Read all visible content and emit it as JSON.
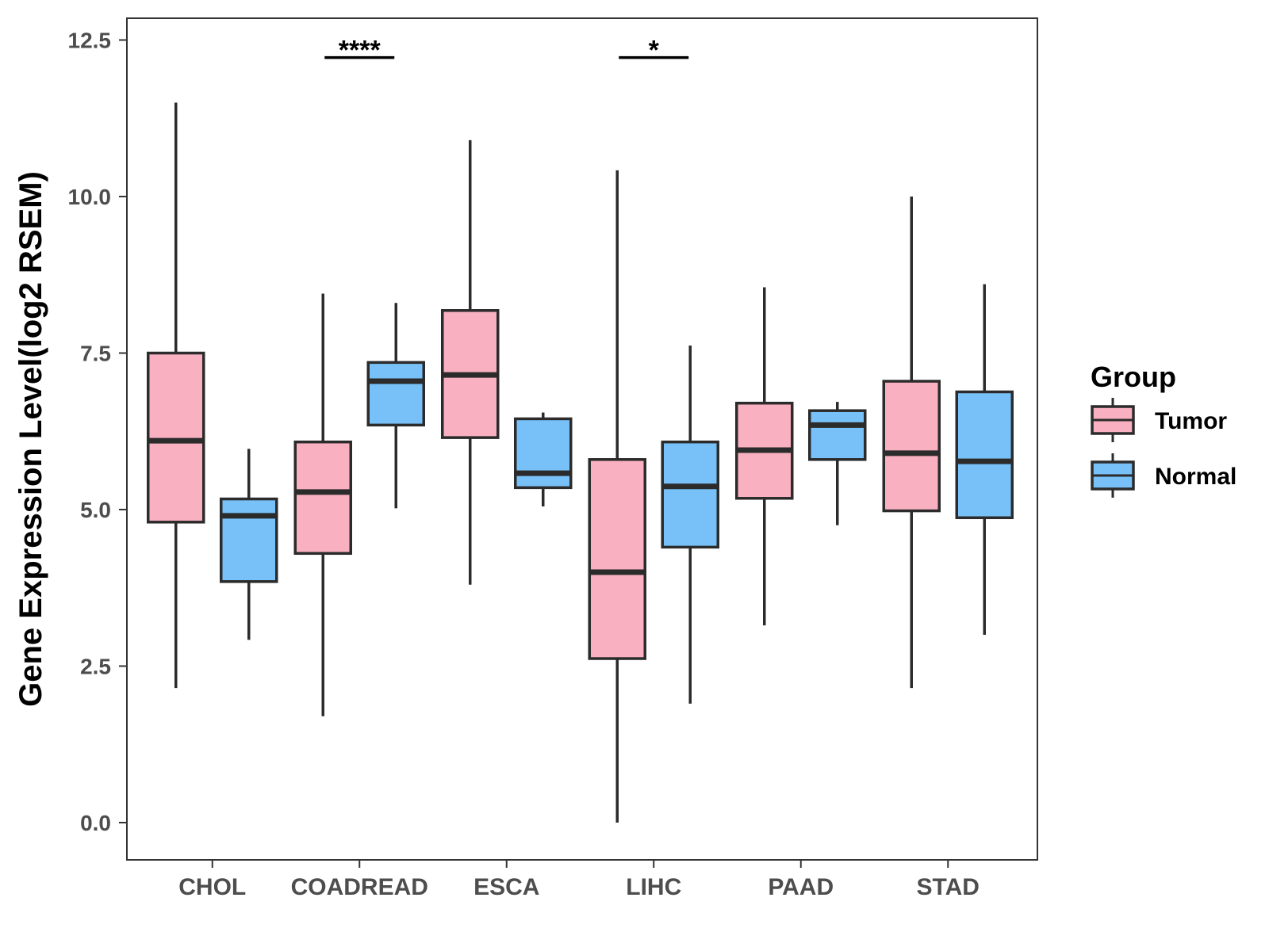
{
  "chart_data": {
    "type": "boxplot",
    "ylabel": "Gene Expression Level(log2 RSEM)",
    "xlabel": "",
    "ylim": [
      -0.6,
      12.85
    ],
    "yticks": [
      0.0,
      2.5,
      5.0,
      7.5,
      10.0,
      12.5
    ],
    "ytick_labels": [
      "0.0",
      "2.5",
      "5.0",
      "7.5",
      "10.0",
      "12.5"
    ],
    "categories": [
      "CHOL",
      "COADREAD",
      "ESCA",
      "LIHC",
      "PAAD",
      "STAD"
    ],
    "legend": {
      "title": "Group",
      "position": "right",
      "entries": [
        {
          "name": "Tumor",
          "color": "#F9B0C1"
        },
        {
          "name": "Normal",
          "color": "#78C1F8"
        }
      ]
    },
    "series": [
      {
        "name": "Tumor",
        "color": "#F9B0C1",
        "boxes": [
          {
            "category": "CHOL",
            "min": 2.15,
            "q1": 4.8,
            "median": 6.1,
            "q3": 7.5,
            "max": 11.5
          },
          {
            "category": "COADREAD",
            "min": 1.7,
            "q1": 4.3,
            "median": 5.28,
            "q3": 6.08,
            "max": 8.45
          },
          {
            "category": "ESCA",
            "min": 3.8,
            "q1": 6.15,
            "median": 7.15,
            "q3": 8.18,
            "max": 10.9
          },
          {
            "category": "LIHC",
            "min": 0.0,
            "q1": 2.62,
            "median": 4.0,
            "q3": 5.8,
            "max": 10.42
          },
          {
            "category": "PAAD",
            "min": 3.15,
            "q1": 5.18,
            "median": 5.95,
            "q3": 6.7,
            "max": 8.55
          },
          {
            "category": "STAD",
            "min": 2.15,
            "q1": 4.98,
            "median": 5.9,
            "q3": 7.05,
            "max": 10.0
          }
        ]
      },
      {
        "name": "Normal",
        "color": "#78C1F8",
        "boxes": [
          {
            "category": "CHOL",
            "min": 2.92,
            "q1": 3.85,
            "median": 4.9,
            "q3": 5.17,
            "max": 5.97
          },
          {
            "category": "COADREAD",
            "min": 5.02,
            "q1": 6.35,
            "median": 7.05,
            "q3": 7.35,
            "max": 8.3
          },
          {
            "category": "ESCA",
            "min": 5.05,
            "q1": 5.35,
            "median": 5.58,
            "q3": 6.45,
            "max": 6.55
          },
          {
            "category": "LIHC",
            "min": 1.9,
            "q1": 4.4,
            "median": 5.37,
            "q3": 6.08,
            "max": 7.62
          },
          {
            "category": "PAAD",
            "min": 4.75,
            "q1": 5.8,
            "median": 6.35,
            "q3": 6.58,
            "max": 6.72
          },
          {
            "category": "STAD",
            "min": 3.0,
            "q1": 4.87,
            "median": 5.77,
            "q3": 6.88,
            "max": 8.6
          }
        ]
      }
    ],
    "significance": [
      {
        "category": "COADREAD",
        "label": "****",
        "y": 12.22
      },
      {
        "category": "LIHC",
        "label": "*",
        "y": 12.22
      }
    ]
  }
}
